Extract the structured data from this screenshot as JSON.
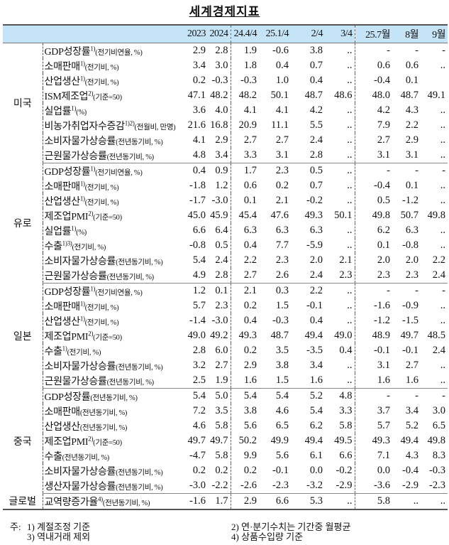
{
  "title": "세계경제지표",
  "columns": [
    "2023",
    "2024",
    "24.4/4",
    "25.1/4",
    "2/4",
    "3/4",
    "25.7월",
    "8월",
    "9월"
  ],
  "sections": [
    {
      "region": "미국",
      "rows": [
        {
          "label": "GDP성장률",
          "sup": "1)",
          "unit": "(전기비연율, %)",
          "values": [
            "2.9",
            "2.8",
            "1.9",
            "-0.6",
            "3.8",
            "..",
            "-",
            "-",
            "-"
          ]
        },
        {
          "label": "소매판매",
          "sup": "1)",
          "unit": "(전기비, %)",
          "values": [
            "3.4",
            "3.0",
            "1.8",
            "0.4",
            "0.7",
            "..",
            "0.6",
            "0.6",
            ".."
          ]
        },
        {
          "label": "산업생산",
          "sup": "1)",
          "unit": "(전기비, %)",
          "values": [
            "0.2",
            "-0.3",
            "-0.3",
            "1.0",
            "0.4",
            "..",
            "-0.4",
            "0.1",
            ""
          ]
        },
        {
          "label": "ISM제조업",
          "sup": "2)",
          "unit": "(기준=50)",
          "values": [
            "47.1",
            "48.2",
            "48.2",
            "50.1",
            "48.7",
            "48.6",
            "48.0",
            "48.7",
            "49.1"
          ]
        },
        {
          "label": "실업률",
          "sup": "1)",
          "unit": "(%)",
          "values": [
            "3.6",
            "4.0",
            "4.1",
            "4.1",
            "4.2",
            "..",
            "4.2",
            "4.3",
            ".."
          ]
        },
        {
          "label": "비농가취업자수증감",
          "sup": "1)2)",
          "unit": "(전월비, 만명)",
          "values": [
            "21.6",
            "16.8",
            "20.9",
            "11.1",
            "5.5",
            "..",
            "7.9",
            "2.2",
            ".."
          ]
        },
        {
          "label": "소비자물가상승률",
          "sup": "",
          "unit": "(전년동기비, %)",
          "values": [
            "4.1",
            "2.9",
            "2.7",
            "2.7",
            "2.4",
            "..",
            "2.7",
            "2.9",
            ".."
          ]
        },
        {
          "label": "근원물가상승률",
          "sup": "",
          "unit": "(전년동기비, %)",
          "values": [
            "4.8",
            "3.4",
            "3.3",
            "3.1",
            "2.8",
            "..",
            "3.1",
            "3.1",
            ".."
          ]
        }
      ]
    },
    {
      "region": "유로",
      "rows": [
        {
          "label": "GDP성장률",
          "sup": "1)",
          "unit": "(전기비연율, %)",
          "values": [
            "0.4",
            "0.9",
            "1.7",
            "2.3",
            "0.5",
            "..",
            "-",
            "-",
            "-"
          ]
        },
        {
          "label": "소매판매",
          "sup": "1)",
          "unit": "(전기비, %)",
          "values": [
            "-1.8",
            "1.2",
            "0.6",
            "0.2",
            "0.7",
            "..",
            "-0.4",
            "0.1",
            ".."
          ]
        },
        {
          "label": "산업생산",
          "sup": "1)",
          "unit": "(전기비, %)",
          "values": [
            "-1.7",
            "-3.0",
            "0.1",
            "2.1",
            "-0.2",
            "..",
            "0.5",
            "-1.2",
            ".."
          ]
        },
        {
          "label": "제조업PMI",
          "sup": "2)",
          "unit": "(기준=50)",
          "values": [
            "45.0",
            "45.9",
            "45.4",
            "47.6",
            "49.3",
            "50.1",
            "49.8",
            "50.7",
            "49.8"
          ]
        },
        {
          "label": "실업률",
          "sup": "1)",
          "unit": "(%)",
          "values": [
            "6.6",
            "6.4",
            "6.3",
            "6.3",
            "6.3",
            "..",
            "6.2",
            "6.3",
            ".."
          ]
        },
        {
          "label": "수출",
          "sup": "1)3)",
          "unit": "(전기비, %)",
          "values": [
            "-0.8",
            "0.5",
            "0.4",
            "7.7",
            "-5.9",
            "..",
            "0.1",
            "-0.8",
            ".."
          ]
        },
        {
          "label": "소비자물가상승률",
          "sup": "",
          "unit": "(전년동기비, %)",
          "values": [
            "5.4",
            "2.4",
            "2.2",
            "2.3",
            "2.0",
            "2.1",
            "2.0",
            "2.0",
            "2.2"
          ]
        },
        {
          "label": "근원물가상승률",
          "sup": "",
          "unit": "(전년동기비, %)",
          "values": [
            "4.9",
            "2.8",
            "2.7",
            "2.6",
            "2.4",
            "2.3",
            "2.3",
            "2.3",
            "2.4"
          ]
        }
      ]
    },
    {
      "region": "일본",
      "rows": [
        {
          "label": "GDP성장률",
          "sup": "1)",
          "unit": "(전기비연율, %)",
          "values": [
            "1.2",
            "0.1",
            "2.1",
            "0.3",
            "2.2",
            "..",
            "-",
            "-",
            "-"
          ]
        },
        {
          "label": "소매판매",
          "sup": "1)",
          "unit": "(전기비, %)",
          "values": [
            "5.7",
            "2.3",
            "0.2",
            "1.5",
            "-0.1",
            "..",
            "-1.6",
            "-0.9",
            ".."
          ]
        },
        {
          "label": "산업생산",
          "sup": "1)",
          "unit": "(전기비, %)",
          "values": [
            "-1.4",
            "-3.0",
            "0.4",
            "-0.3",
            "0.4",
            "..",
            "-1.2",
            "-1.5",
            ".."
          ]
        },
        {
          "label": "제조업PMI",
          "sup": "2)",
          "unit": "(기준=50)",
          "values": [
            "49.0",
            "49.2",
            "49.3",
            "48.7",
            "49.4",
            "49.0",
            "48.9",
            "49.7",
            "48.5"
          ]
        },
        {
          "label": "수출",
          "sup": "1)",
          "unit": "(전기비, %)",
          "values": [
            "2.8",
            "6.0",
            "0.2",
            "3.5",
            "-3.5",
            "0.4",
            "-0.1",
            "-0.1",
            "2.4"
          ]
        },
        {
          "label": "소비자물가상승률",
          "sup": "",
          "unit": "(전년동기비, %)",
          "values": [
            "3.2",
            "2.7",
            "2.9",
            "3.8",
            "3.4",
            "..",
            "3.1",
            "2.7",
            ".."
          ]
        },
        {
          "label": "근원물가상승률",
          "sup": "",
          "unit": "(전년동기비, %)",
          "values": [
            "2.5",
            "1.9",
            "1.6",
            "1.5",
            "1.6",
            "..",
            "1.6",
            "1.6",
            ".."
          ]
        }
      ]
    },
    {
      "region": "중국",
      "rows": [
        {
          "label": "GDP성장률",
          "sup": "",
          "unit": "(전년동기비, %)",
          "values": [
            "5.4",
            "5.0",
            "5.4",
            "5.4",
            "5.2",
            "4.8",
            "-",
            "-",
            "-"
          ]
        },
        {
          "label": "소매판매",
          "sup": "",
          "unit": "(전년동기비, %)",
          "values": [
            "7.2",
            "3.5",
            "3.8",
            "4.6",
            "5.4",
            "3.3",
            "3.7",
            "3.4",
            "3.0"
          ]
        },
        {
          "label": "산업생산",
          "sup": "",
          "unit": "(전년동기비, %)",
          "values": [
            "4.6",
            "5.8",
            "5.6",
            "6.5",
            "6.2",
            "5.8",
            "5.7",
            "5.2",
            "6.5"
          ]
        },
        {
          "label": "제조업PMI",
          "sup": "2)",
          "unit": "(기준=50)",
          "values": [
            "49.7",
            "49.7",
            "50.2",
            "49.9",
            "49.4",
            "49.5",
            "49.3",
            "49.4",
            "49.8"
          ]
        },
        {
          "label": "수출",
          "sup": "",
          "unit": "(전년동기비, %)",
          "values": [
            "-4.7",
            "5.8",
            "9.9",
            "5.6",
            "6.1",
            "6.6",
            "7.1",
            "4.3",
            "8.3"
          ]
        },
        {
          "label": "소비자물가상승률",
          "sup": "",
          "unit": "(전년동기비, %)",
          "values": [
            "0.2",
            "0.2",
            "0.2",
            "-0.1",
            "0.0",
            "-0.2",
            "0.0",
            "-0.4",
            "-0.3"
          ]
        },
        {
          "label": "생산자물가상승률",
          "sup": "",
          "unit": "(전년동기비, %)",
          "values": [
            "-3.0",
            "-2.2",
            "-2.6",
            "-2.3",
            "-3.2",
            "-2.9",
            "-3.6",
            "-2.9",
            "-2.3"
          ]
        }
      ]
    },
    {
      "region": "글로벌",
      "rows": [
        {
          "label": "교역량증가율",
          "sup": "4)",
          "unit": "(전년동기비, %)",
          "values": [
            "-1.6",
            "1.7",
            "2.9",
            "6.6",
            "5.3",
            "..",
            "5.8",
            "..",
            ".."
          ]
        }
      ]
    }
  ],
  "notes": {
    "prefix": "주:",
    "n1": "1) 계절조정 기준",
    "n2": "2) 연·분기수치는 기간중 월평균",
    "n3": "3) 역내거래 제외",
    "n4": "4) 상품수입량 기준"
  }
}
